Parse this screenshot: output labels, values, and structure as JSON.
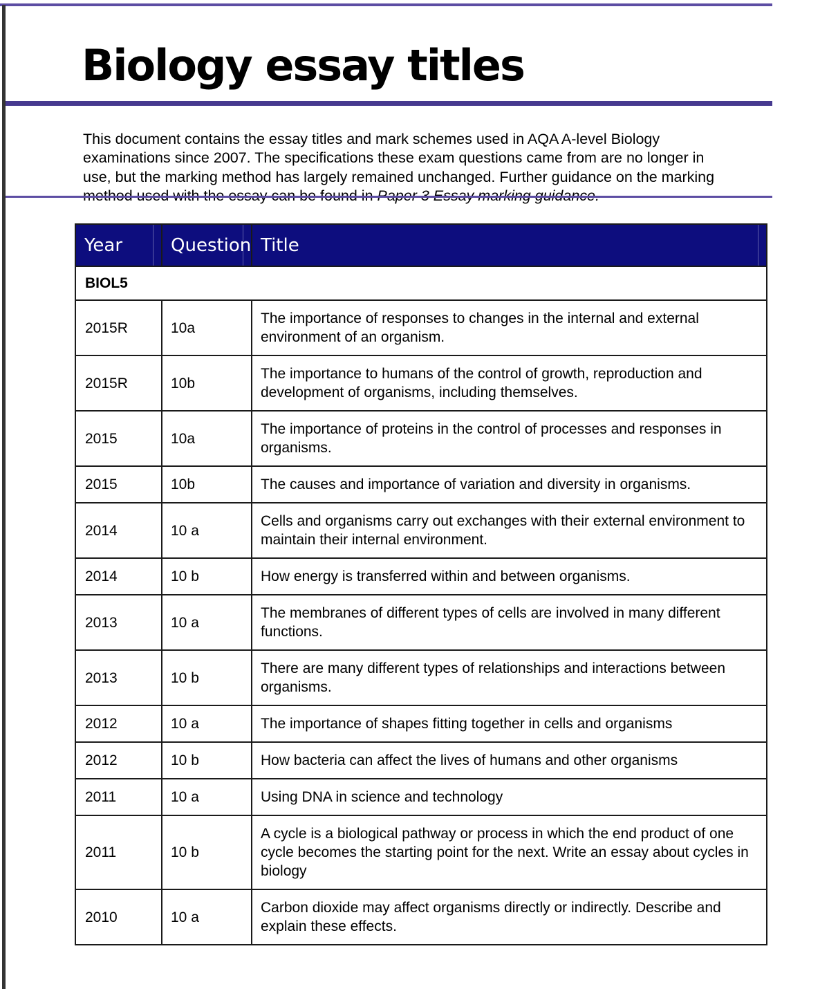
{
  "page": {
    "title": "Biology essay titles",
    "intro": {
      "lines": [
        "This document contains the essay titles and mark schemes used in AQA A-level Biology",
        "examinations since 2007. The specifications these exam questions came from are no longer in",
        "use, but the marking method has largely remained unchanged. Further guidance on the marking",
        "method used with the essay can be found in "
      ],
      "italic_text": "Paper 3 Essay marking guidance."
    }
  },
  "table": {
    "headers": [
      "Year",
      "Question",
      "Title"
    ],
    "section_label": "BIOL5",
    "rows": [
      {
        "year": "2015R",
        "question": "10a",
        "title": "The importance of responses to changes in the internal and external environment of an organism."
      },
      {
        "year": "2015R",
        "question": "10b",
        "title": "The importance to humans of the control of growth, reproduction and development of organisms, including themselves."
      },
      {
        "year": "2015",
        "question": "10a",
        "title": "The importance of proteins in the control of processes and responses in organisms."
      },
      {
        "year": "2015",
        "question": "10b",
        "title": "The causes and importance of variation and diversity in organisms."
      },
      {
        "year": "2014",
        "question": "10 a",
        "title": "Cells and organisms carry out exchanges with their external environment to maintain their internal environment."
      },
      {
        "year": "2014",
        "question": "10 b",
        "title": "How energy is transferred within and between organisms."
      },
      {
        "year": "2013",
        "question": "10 a",
        "title": "The membranes of different types of cells are involved in many different functions."
      },
      {
        "year": "2013",
        "question": "10 b",
        "title": "There are many different types of relationships and interactions between organisms."
      },
      {
        "year": "2012",
        "question": "10 a",
        "title": "The importance of shapes fitting together in cells and organisms"
      },
      {
        "year": "2012",
        "question": "10 b",
        "title": "How bacteria can affect the lives of humans and other organisms"
      },
      {
        "year": "2011",
        "question": "10 a",
        "title": "Using DNA in science and technology"
      },
      {
        "year": "2011",
        "question": "10 b",
        "title": "A cycle is a biological pathway or process in which the end product of one cycle becomes the starting point for the next. Write an essay about cycles in biology"
      },
      {
        "year": "2010",
        "question": "10 a",
        "title": "Carbon dioxide may affect organisms directly or indirectly. Describe and explain these effects."
      }
    ]
  },
  "colors": {
    "header_background": "#0d0d7e",
    "header_text": "#ffffff",
    "section_row_background": "#c9c2da",
    "rule_thick_purple": "#46398f",
    "rule_thin_purple": "#5c4da3",
    "left_bar": "#333333",
    "table_border": "#1a1a1a"
  }
}
